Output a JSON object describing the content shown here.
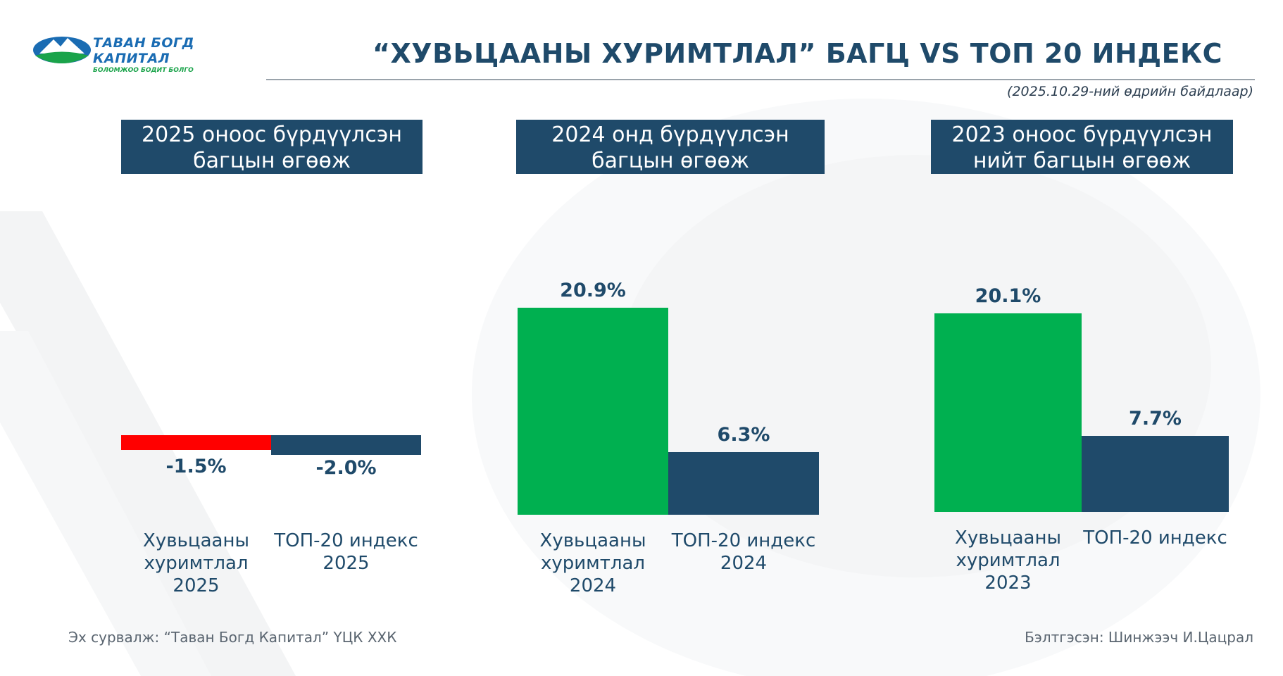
{
  "brand": {
    "name": "ТАВАН БОГД КАПИТАЛ",
    "tagline": "БОЛОМЖОО БОДИТ БОЛГО",
    "colors": {
      "navy": "#1f4a6a",
      "green": "#00b050",
      "red": "#ff0000"
    }
  },
  "title": "“ХУВЬЦААНЫ ХУРИМТЛАЛ” БАГЦ VS ТОП 20 ИНДЕКС",
  "date_note": "(2025.10.29-ний өдрийн байдлаар)",
  "footer": {
    "source": "Эх сурвалж: “Таван Богд Капитал” ҮЦК ХХК",
    "prepared_by": "Бэлтгэсэн: Шинжээч И.Цацрал"
  },
  "chart_data": [
    {
      "type": "bar",
      "title": "2025 оноос бүрдүүлсэн багцын өгөөж",
      "categories": [
        "Хувьцааны хуримтлал 2025",
        "ТОП-20 индекс 2025"
      ],
      "values": [
        -1.5,
        -2.0
      ],
      "value_labels": [
        "-1.5%",
        "-2.0%"
      ],
      "colors": [
        "#ff0000",
        "#1f4a6a"
      ],
      "unit": "%"
    },
    {
      "type": "bar",
      "title": "2024 онд бүрдүүлсэн багцын өгөөж",
      "categories": [
        "Хувьцааны хуримтлал 2024",
        "ТОП-20 индекс 2024"
      ],
      "values": [
        20.9,
        6.3
      ],
      "value_labels": [
        "20.9%",
        "6.3%"
      ],
      "colors": [
        "#00b050",
        "#1f4a6a"
      ],
      "unit": "%"
    },
    {
      "type": "bar",
      "title": "2023 оноос бүрдүүлсэн нийт багцын өгөөж",
      "categories": [
        "Хувьцааны хуримтлал 2023",
        "ТОП-20 индекс"
      ],
      "values": [
        20.1,
        7.7
      ],
      "value_labels": [
        "20.1%",
        "7.7%"
      ],
      "colors": [
        "#00b050",
        "#1f4a6a"
      ],
      "unit": "%"
    }
  ]
}
